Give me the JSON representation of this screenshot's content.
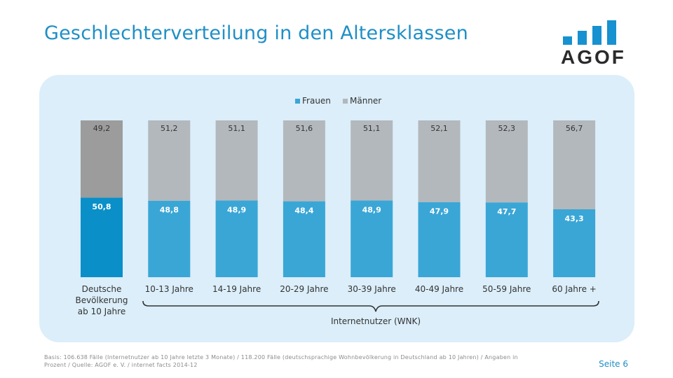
{
  "header": {
    "title": "Geschlechterverteilung in den Altersklassen",
    "logo_text": "AGOF"
  },
  "chart_data": {
    "type": "bar",
    "stacked": true,
    "categories": [
      "Deutsche Bevölkerung ab 10 Jahre",
      "10-13 Jahre",
      "14-19 Jahre",
      "20-29 Jahre",
      "30-39 Jahre",
      "40-49 Jahre",
      "50-59 Jahre",
      "60 Jahre +"
    ],
    "category_lines": [
      [
        "Deutsche",
        "Bevölkerung",
        "ab 10 Jahre"
      ],
      [
        "10-13 Jahre"
      ],
      [
        "14-19 Jahre"
      ],
      [
        "20-29 Jahre"
      ],
      [
        "30-39 Jahre"
      ],
      [
        "40-49 Jahre"
      ],
      [
        "50-59 Jahre"
      ],
      [
        "60 Jahre +"
      ]
    ],
    "series": [
      {
        "name": "Frauen",
        "values": [
          50.8,
          48.8,
          48.9,
          48.4,
          48.9,
          47.9,
          47.7,
          43.3
        ],
        "labels": [
          "50,8",
          "48,8",
          "48,9",
          "48,4",
          "48,9",
          "47,9",
          "47,7",
          "43,3"
        ]
      },
      {
        "name": "Männer",
        "values": [
          49.2,
          51.2,
          51.1,
          51.6,
          51.1,
          52.1,
          52.3,
          56.7
        ],
        "labels": [
          "49,2",
          "51,2",
          "51,1",
          "51,6",
          "51,1",
          "52,1",
          "52,3",
          "56,7"
        ]
      }
    ],
    "colors": {
      "frauen": "#3aa6d6",
      "maenner": "#b3b8bc",
      "frauen_highlight": "#0a8fc8",
      "maenner_highlight": "#9c9c9c"
    },
    "ylim": [
      0,
      100
    ],
    "legend_position": "top",
    "grid": false,
    "group_label": "Internetnutzer (WNK)"
  },
  "footer": {
    "note": "Basis: 106.638 Fälle (Internetnutzer ab 10 Jahre letzte 3 Monate) / 118.200 Fälle (deutschsprachige Wohnbevölkerung in Deutschland ab 10 Jahren) / Angaben in Prozent / Quelle: AGOF e. V. / internet facts 2014-12",
    "page": "Seite 6"
  }
}
